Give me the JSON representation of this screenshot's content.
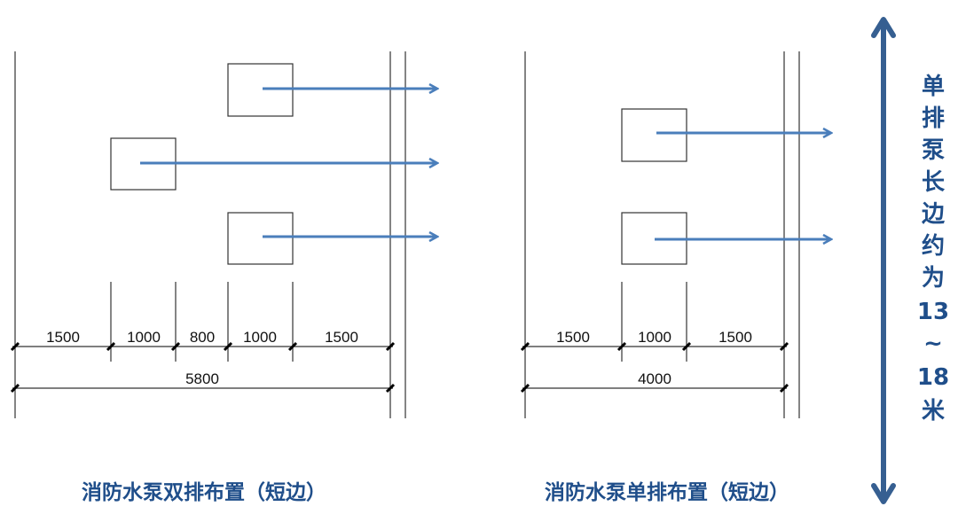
{
  "left": {
    "dimensions": [
      "1500",
      "1000",
      "800",
      "1000",
      "1500"
    ],
    "total": "5800",
    "title": "消防水泵双排布置（短边）"
  },
  "right": {
    "dimensions": [
      "1500",
      "1000",
      "1500"
    ],
    "total": "4000",
    "title": "消防水泵单排布置（短边）"
  },
  "side_label": [
    "单",
    "排",
    "泵",
    "长",
    "边",
    "约",
    "为",
    "13",
    "~",
    "18",
    "米"
  ],
  "colors": {
    "flow_arrow": "#4a7ebb",
    "span_arrow": "#365f91",
    "title": "#1f4e8a"
  }
}
